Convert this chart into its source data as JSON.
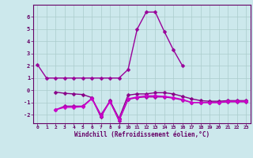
{
  "xlabel": "Windchill (Refroidissement éolien,°C)",
  "x": [
    0,
    1,
    2,
    3,
    4,
    5,
    6,
    7,
    8,
    9,
    10,
    11,
    12,
    13,
    14,
    15,
    16,
    17,
    18,
    19,
    20,
    21,
    22,
    23
  ],
  "line1": [
    2.1,
    1.0,
    1.0,
    1.0,
    1.0,
    1.0,
    1.0,
    1.0,
    1.0,
    1.0,
    1.7,
    5.0,
    6.4,
    6.4,
    4.8,
    3.3,
    2.0,
    null,
    null,
    null,
    null,
    null,
    null,
    null
  ],
  "line2": [
    null,
    null,
    -0.15,
    -0.25,
    -0.3,
    -0.35,
    -0.6,
    -2.2,
    -0.85,
    -2.3,
    -0.4,
    -0.3,
    -0.3,
    -0.2,
    -0.2,
    -0.3,
    -0.5,
    -0.7,
    -0.85,
    -0.9,
    -0.9,
    -0.85,
    -0.85,
    -0.85
  ],
  "line3": [
    null,
    null,
    -1.6,
    -1.3,
    -1.3,
    -1.3,
    -0.65,
    -2.0,
    -0.9,
    -2.5,
    -0.75,
    -0.6,
    -0.55,
    -0.55,
    -0.55,
    -0.65,
    -0.8,
    -1.0,
    -1.0,
    -1.0,
    -1.0,
    -0.95,
    -0.95,
    -0.95
  ],
  "line4": [
    null,
    null,
    -1.6,
    -1.4,
    -1.4,
    -1.35,
    -0.7,
    -2.1,
    -0.95,
    -2.4,
    -0.7,
    -0.55,
    -0.45,
    -0.45,
    -0.5,
    -0.6,
    -0.75,
    -1.0,
    -1.0,
    -1.0,
    -1.0,
    -0.9,
    -0.9,
    -0.9
  ],
  "bg_color": "#cce8ec",
  "line_color1": "#990099",
  "line_color2": "#880088",
  "line_color3": "#aa00aa",
  "line_color4": "#cc00cc",
  "grid_color": "#aacccc",
  "axis_color": "#660066",
  "ylim": [
    -2.7,
    7.0
  ],
  "yticks": [
    -2,
    -1,
    0,
    1,
    2,
    3,
    4,
    5,
    6
  ],
  "xticks": [
    0,
    1,
    2,
    3,
    4,
    5,
    6,
    7,
    8,
    9,
    10,
    11,
    12,
    13,
    14,
    15,
    16,
    17,
    18,
    19,
    20,
    21,
    22,
    23
  ],
  "marker": "D",
  "markersize": 2.5,
  "linewidth": 1.0
}
